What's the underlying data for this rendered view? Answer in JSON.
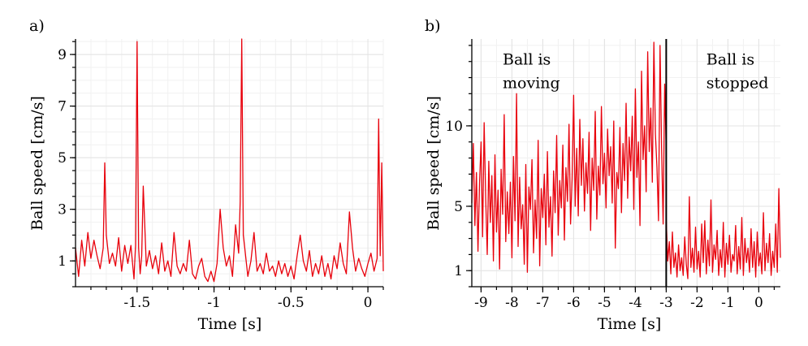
{
  "colors": {
    "series": "#e8000b",
    "marker": "#000000",
    "grid": "#e3e3e3"
  },
  "chart_data": [
    {
      "type": "line",
      "panel_label": "a)",
      "xlabel": "Time [s]",
      "ylabel": "Ball speed [cm/s]",
      "xlim": [
        -1.9,
        0.1
      ],
      "ylim": [
        0,
        9.6
      ],
      "xticks": [
        -1.5,
        -1,
        -0.5,
        0
      ],
      "xtick_labels": [
        "-1.5",
        "-1",
        "-0.5",
        "0"
      ],
      "yticks": [
        1,
        3,
        5,
        7,
        9
      ],
      "ytick_labels": [
        "1",
        "3",
        "5",
        "7",
        "9"
      ],
      "grid": true,
      "series": [
        {
          "x": [
            -1.9,
            -1.88,
            -1.86,
            -1.84,
            -1.82,
            -1.8,
            -1.78,
            -1.76,
            -1.74,
            -1.72,
            -1.71,
            -1.7,
            -1.68,
            -1.66,
            -1.64,
            -1.62,
            -1.6,
            -1.58,
            -1.56,
            -1.54,
            -1.52,
            -1.51,
            -1.5,
            -1.49,
            -1.48,
            -1.47,
            -1.46,
            -1.44,
            -1.42,
            -1.4,
            -1.38,
            -1.36,
            -1.34,
            -1.32,
            -1.3,
            -1.28,
            -1.26,
            -1.24,
            -1.22,
            -1.2,
            -1.18,
            -1.16,
            -1.14,
            -1.12,
            -1.1,
            -1.08,
            -1.06,
            -1.04,
            -1.02,
            -1.0,
            -0.98,
            -0.96,
            -0.94,
            -0.92,
            -0.9,
            -0.88,
            -0.86,
            -0.84,
            -0.83,
            -0.82,
            -0.81,
            -0.8,
            -0.78,
            -0.76,
            -0.74,
            -0.72,
            -0.7,
            -0.68,
            -0.66,
            -0.64,
            -0.62,
            -0.6,
            -0.58,
            -0.56,
            -0.54,
            -0.52,
            -0.5,
            -0.48,
            -0.46,
            -0.44,
            -0.42,
            -0.4,
            -0.38,
            -0.36,
            -0.34,
            -0.32,
            -0.3,
            -0.28,
            -0.26,
            -0.24,
            -0.22,
            -0.2,
            -0.18,
            -0.16,
            -0.14,
            -0.12,
            -0.1,
            -0.08,
            -0.06,
            -0.04,
            -0.02,
            0.0,
            0.02,
            0.04,
            0.06,
            0.07,
            0.08,
            0.09,
            0.1
          ],
          "y": [
            1.5,
            0.4,
            1.8,
            0.8,
            2.1,
            1.1,
            1.8,
            1.2,
            0.7,
            1.5,
            4.8,
            2.0,
            0.9,
            1.3,
            0.8,
            1.9,
            0.6,
            1.6,
            0.9,
            1.6,
            0.3,
            1.6,
            9.5,
            1.5,
            0.5,
            1.2,
            3.9,
            0.8,
            1.4,
            0.7,
            1.2,
            0.5,
            1.7,
            0.6,
            1.0,
            0.4,
            2.1,
            0.8,
            0.5,
            0.9,
            0.6,
            1.8,
            0.5,
            0.3,
            0.8,
            1.1,
            0.4,
            0.2,
            0.6,
            0.2,
            0.9,
            3.0,
            1.5,
            0.8,
            1.2,
            0.4,
            2.4,
            1.3,
            3.3,
            9.6,
            2.0,
            1.5,
            0.4,
            1.0,
            2.1,
            0.6,
            0.9,
            0.5,
            1.3,
            0.6,
            0.8,
            0.4,
            1.0,
            0.5,
            0.9,
            0.4,
            0.8,
            0.3,
            1.2,
            2.0,
            1.0,
            0.6,
            1.4,
            0.4,
            0.9,
            0.5,
            1.2,
            0.4,
            0.9,
            0.3,
            1.2,
            0.7,
            1.7,
            0.9,
            0.5,
            2.9,
            1.5,
            0.6,
            1.1,
            0.7,
            0.4,
            0.9,
            1.3,
            0.6,
            1.1,
            6.5,
            1.2,
            4.8,
            0.6
          ]
        }
      ]
    },
    {
      "type": "line",
      "panel_label": "b)",
      "xlabel": "Time [s]",
      "ylabel": "Ball speed [cm/s]",
      "xlim": [
        -9.3,
        0.7
      ],
      "ylim": [
        0,
        15.4
      ],
      "xticks": [
        -9,
        -8,
        -7,
        -6,
        -5,
        -4,
        -3,
        -2,
        -1,
        0
      ],
      "xtick_labels": [
        "-9",
        "-8",
        "-7",
        "-6",
        "-5",
        "-4",
        "-3",
        "-2",
        "-1",
        "0"
      ],
      "yticks": [
        1,
        5,
        10
      ],
      "ytick_labels": [
        "1",
        "5",
        "10"
      ],
      "grid": true,
      "marker_x": -3,
      "annotations": [
        {
          "id": "moving",
          "lines": [
            "Ball is",
            "moving"
          ],
          "x": -8.3,
          "y": 13.8
        },
        {
          "id": "stopped",
          "lines": [
            "Ball is",
            "stopped"
          ],
          "x": -1.7,
          "y": 13.8
        }
      ],
      "series": [
        {
          "x": [
            -9.3,
            -9.25,
            -9.2,
            -9.15,
            -9.1,
            -9.05,
            -9.0,
            -8.95,
            -8.9,
            -8.85,
            -8.8,
            -8.75,
            -8.7,
            -8.65,
            -8.6,
            -8.55,
            -8.5,
            -8.45,
            -8.4,
            -8.35,
            -8.3,
            -8.25,
            -8.2,
            -8.15,
            -8.1,
            -8.05,
            -8.0,
            -7.95,
            -7.9,
            -7.85,
            -7.8,
            -7.75,
            -7.7,
            -7.65,
            -7.6,
            -7.55,
            -7.5,
            -7.45,
            -7.4,
            -7.35,
            -7.3,
            -7.25,
            -7.2,
            -7.15,
            -7.1,
            -7.05,
            -7.0,
            -6.95,
            -6.9,
            -6.85,
            -6.8,
            -6.75,
            -6.7,
            -6.65,
            -6.6,
            -6.55,
            -6.5,
            -6.45,
            -6.4,
            -6.35,
            -6.3,
            -6.25,
            -6.2,
            -6.15,
            -6.1,
            -6.05,
            -6.0,
            -5.95,
            -5.9,
            -5.85,
            -5.8,
            -5.75,
            -5.7,
            -5.65,
            -5.6,
            -5.55,
            -5.5,
            -5.45,
            -5.4,
            -5.35,
            -5.3,
            -5.25,
            -5.2,
            -5.15,
            -5.1,
            -5.05,
            -5.0,
            -4.95,
            -4.9,
            -4.85,
            -4.8,
            -4.75,
            -4.7,
            -4.65,
            -4.6,
            -4.55,
            -4.5,
            -4.45,
            -4.4,
            -4.35,
            -4.3,
            -4.25,
            -4.2,
            -4.15,
            -4.1,
            -4.05,
            -4.0,
            -3.95,
            -3.9,
            -3.85,
            -3.8,
            -3.75,
            -3.7,
            -3.65,
            -3.6,
            -3.55,
            -3.5,
            -3.45,
            -3.4,
            -3.35,
            -3.3,
            -3.25,
            -3.2,
            -3.15,
            -3.1,
            -3.05,
            -3.0
          ],
          "y": [
            5.2,
            8.9,
            3.8,
            7.1,
            2.2,
            6.4,
            9.0,
            3.1,
            10.2,
            5.5,
            2.0,
            7.8,
            4.0,
            6.9,
            1.6,
            8.2,
            3.4,
            6.0,
            1.1,
            7.3,
            4.5,
            10.7,
            2.8,
            5.9,
            3.3,
            6.5,
            1.8,
            8.1,
            4.1,
            12.0,
            2.5,
            6.8,
            3.6,
            5.1,
            1.4,
            7.6,
            0.9,
            6.2,
            4.8,
            7.9,
            2.1,
            5.4,
            3.0,
            9.1,
            1.3,
            6.1,
            4.3,
            7.0,
            2.6,
            8.4,
            3.7,
            5.6,
            1.9,
            7.2,
            4.6,
            9.4,
            3.2,
            6.6,
            4.9,
            8.8,
            2.9,
            7.4,
            5.3,
            10.1,
            3.9,
            6.7,
            11.9,
            5.0,
            8.6,
            4.4,
            10.4,
            6.3,
            9.2,
            4.7,
            7.7,
            5.8,
            9.6,
            3.5,
            8.0,
            6.0,
            10.9,
            4.2,
            7.5,
            5.7,
            11.2,
            6.4,
            8.3,
            4.9,
            9.8,
            6.9,
            8.7,
            5.2,
            10.3,
            2.4,
            7.1,
            6.1,
            9.9,
            4.6,
            8.9,
            6.6,
            11.4,
            5.5,
            9.3,
            7.2,
            10.6,
            4.8,
            12.3,
            6.8,
            9.0,
            3.8,
            13.4,
            7.9,
            10.0,
            5.9,
            14.6,
            8.4,
            11.1,
            6.5,
            15.2,
            9.5,
            7.4,
            4.1,
            15.0,
            8.6,
            3.9,
            12.6,
            8.5
          ]
        },
        {
          "x": [
            -3.0,
            -2.95,
            -2.9,
            -2.85,
            -2.8,
            -2.75,
            -2.7,
            -2.65,
            -2.6,
            -2.55,
            -2.5,
            -2.45,
            -2.4,
            -2.35,
            -2.3,
            -2.25,
            -2.2,
            -2.15,
            -2.1,
            -2.05,
            -2.0,
            -1.95,
            -1.9,
            -1.85,
            -1.8,
            -1.75,
            -1.7,
            -1.65,
            -1.6,
            -1.55,
            -1.5,
            -1.45,
            -1.4,
            -1.35,
            -1.3,
            -1.25,
            -1.2,
            -1.15,
            -1.1,
            -1.05,
            -1.0,
            -0.95,
            -0.9,
            -0.85,
            -0.8,
            -0.75,
            -0.7,
            -0.65,
            -0.6,
            -0.55,
            -0.5,
            -0.45,
            -0.4,
            -0.35,
            -0.3,
            -0.25,
            -0.2,
            -0.15,
            -0.1,
            -0.05,
            0.0,
            0.05,
            0.1,
            0.15,
            0.2,
            0.25,
            0.3,
            0.35,
            0.4,
            0.45,
            0.5,
            0.55,
            0.6,
            0.65,
            0.7
          ],
          "y": [
            4.2,
            1.6,
            2.8,
            0.8,
            3.4,
            1.2,
            2.1,
            0.6,
            2.6,
            1.0,
            1.8,
            0.7,
            3.1,
            1.4,
            0.5,
            5.6,
            1.2,
            2.4,
            0.9,
            3.7,
            1.1,
            2.2,
            0.6,
            3.9,
            1.5,
            4.1,
            0.8,
            2.9,
            1.3,
            5.4,
            0.9,
            2.6,
            1.7,
            3.5,
            0.7,
            2.3,
            1.2,
            4.0,
            0.6,
            2.7,
            1.4,
            3.2,
            0.9,
            2.0,
            1.6,
            3.8,
            0.8,
            2.5,
            1.1,
            4.3,
            0.7,
            3.0,
            1.5,
            2.4,
            0.9,
            3.6,
            1.2,
            2.8,
            0.6,
            3.4,
            1.3,
            2.1,
            0.8,
            4.6,
            1.0,
            2.7,
            1.5,
            3.3,
            0.7,
            2.2,
            1.2,
            3.9,
            0.9,
            6.1,
            1.8
          ]
        }
      ]
    }
  ]
}
